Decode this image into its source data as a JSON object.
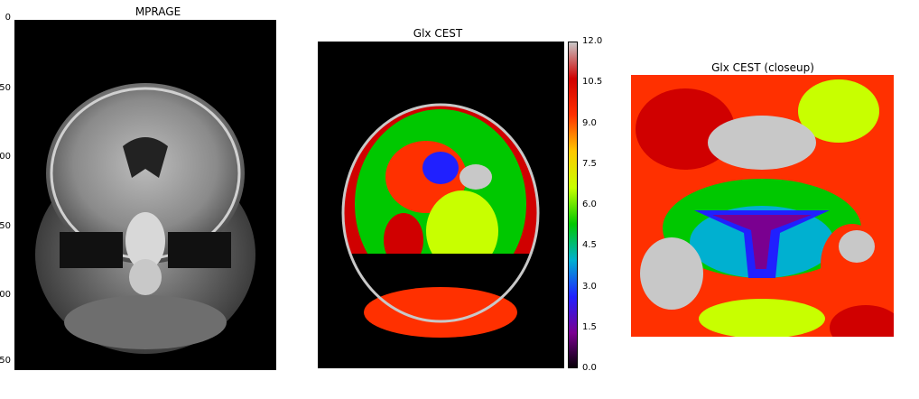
{
  "panels": {
    "mprage": {
      "title": "MPRAGE",
      "image": "coronal-brain-mri-grayscale"
    },
    "cest": {
      "title": "Glx CEST",
      "image": "glx-cest-colormap-brain"
    },
    "closeup": {
      "title": "Glx CEST (closeup)",
      "image": "glx-cest-closeup-colormap"
    }
  },
  "axis_ticks": [
    "0",
    "50",
    "00",
    "50",
    "00",
    "50"
  ],
  "colorbar": {
    "ticks": [
      "12.0",
      "10.5",
      "9.0",
      "7.5",
      "6.0",
      "4.5",
      "3.0",
      "1.5",
      "0.0"
    ],
    "range": [
      0.0,
      12.0
    ],
    "colormap": [
      "#000000",
      "#7a0090",
      "#2020ff",
      "#00b0d0",
      "#00c800",
      "#c8ff00",
      "#ffc800",
      "#ff3000",
      "#d00000",
      "#c8c8c8"
    ]
  }
}
